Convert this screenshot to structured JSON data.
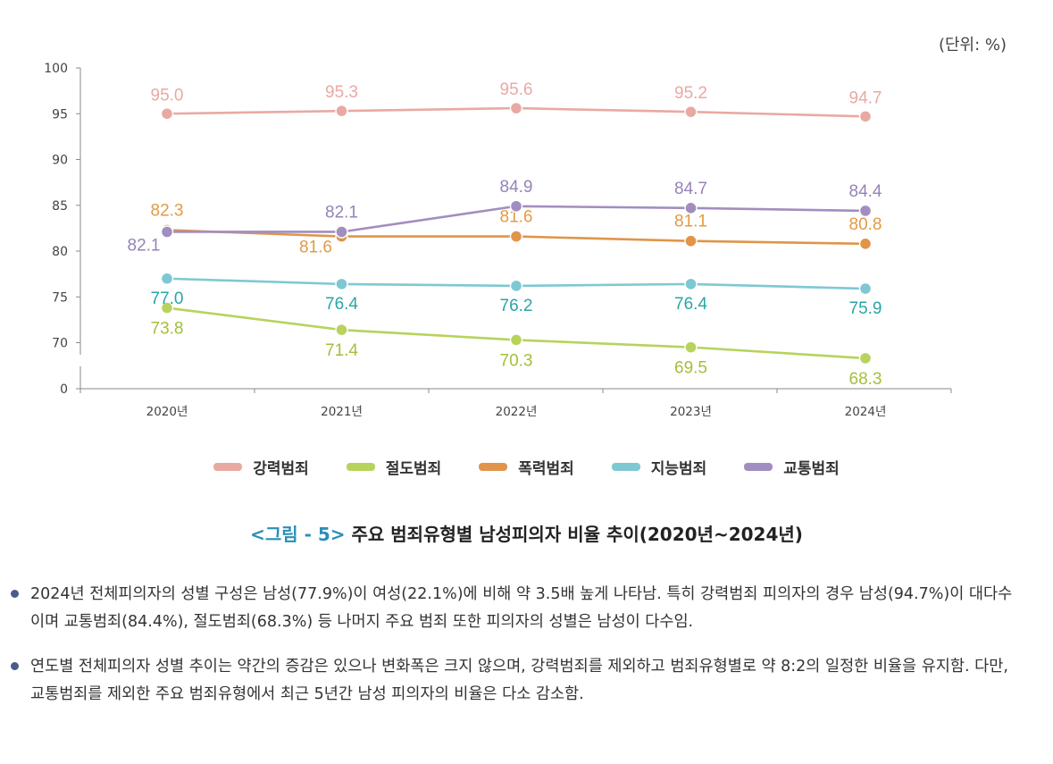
{
  "unit_label": "(단위: %)",
  "chart_data": {
    "type": "line",
    "categories": [
      "2020년",
      "2021년",
      "2022년",
      "2023년",
      "2024년"
    ],
    "y_ticks": [
      "0",
      "70",
      "75",
      "80",
      "85",
      "90",
      "95",
      "100"
    ],
    "y_axis_break": "0 → 70",
    "ylim": [
      70,
      100
    ],
    "grid": false,
    "legend_position": "bottom",
    "series": [
      {
        "name": "강력범죄",
        "color": "#e9a9a3",
        "label_color": "#e9a9a3",
        "values": [
          95.0,
          95.3,
          95.6,
          95.2,
          94.7
        ],
        "labels": [
          "95.0",
          "95.3",
          "95.6",
          "95.2",
          "94.7"
        ]
      },
      {
        "name": "절도범죄",
        "color": "#b7d35d",
        "label_color": "#a3bf3c",
        "values": [
          73.8,
          71.4,
          70.3,
          69.5,
          68.3
        ],
        "labels": [
          "73.8",
          "71.4",
          "70.3",
          "69.5",
          "68.3"
        ]
      },
      {
        "name": "폭력범죄",
        "color": "#e0954a",
        "label_color": "#e39a45",
        "values": [
          82.3,
          81.6,
          81.6,
          81.1,
          80.8
        ],
        "labels": [
          "82.3",
          "81.6",
          "81.6",
          "81.1",
          "80.8"
        ]
      },
      {
        "name": "지능범죄",
        "color": "#7ec8d3",
        "label_color": "#2aa5a5",
        "values": [
          77.0,
          76.4,
          76.2,
          76.4,
          75.9
        ],
        "labels": [
          "77.0",
          "76.4",
          "76.2",
          "76.4",
          "75.9"
        ]
      },
      {
        "name": "교통범죄",
        "color": "#a18ec0",
        "label_color": "#9683b8",
        "values": [
          82.1,
          82.1,
          84.9,
          84.7,
          84.4
        ],
        "labels": [
          "82.1",
          "82.1",
          "84.9",
          "84.7",
          "84.4"
        ]
      }
    ]
  },
  "caption": {
    "figure_no": "<그림 - 5>",
    "title": "주요 범죄유형별 남성피의자 비율 추이(2020년~2024년)"
  },
  "notes": [
    "2024년 전체피의자의 성별 구성은 남성(77.9%)이 여성(22.1%)에 비해 약 3.5배 높게 나타남. 특히 강력범죄 피의자의 경우 남성(94.7%)이 대다수이며 교통범죄(84.4%), 절도범죄(68.3%) 등 나머지 주요 범죄 또한 피의자의 성별은 남성이 다수임.",
    "연도별 전체피의자 성별 추이는 약간의 증감은 있으나 변화폭은 크지 않으며, 강력범죄를 제외하고 범죄유형별로 약 8:2의 일정한 비율을 유지함. 다만, 교통범죄를 제외한 주요 범죄유형에서 최근 5년간 남성 피의자의 비율은 다소 감소함."
  ]
}
